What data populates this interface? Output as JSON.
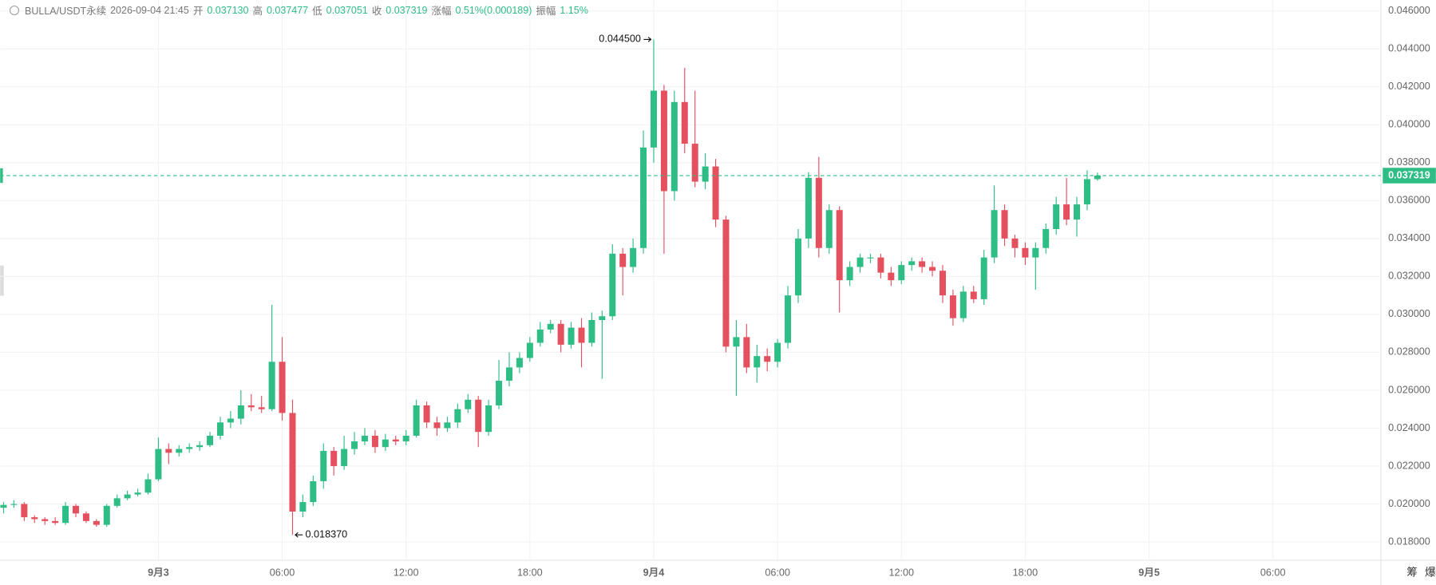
{
  "header": {
    "symbol": "BULLA/USDT永续",
    "time": "2026-09-04 21:45",
    "fields": [
      {
        "label": "开",
        "value": "0.037130"
      },
      {
        "label": "高",
        "value": "0.037477"
      },
      {
        "label": "低",
        "value": "0.037051"
      },
      {
        "label": "收",
        "value": "0.037319"
      },
      {
        "label": "涨幅",
        "value": "0.51%(0.000189)"
      },
      {
        "label": "振幅",
        "value": "1.15%"
      }
    ]
  },
  "chart_data": {
    "type": "candlestick",
    "up_color": "#2ebd85",
    "down_color": "#e5505f",
    "grid": true,
    "x": [
      "2026-09-02T16:30",
      "2026-09-02T17:00",
      "2026-09-02T17:30",
      "2026-09-02T18:00",
      "2026-09-02T18:30",
      "2026-09-02T19:00",
      "2026-09-02T19:30",
      "2026-09-02T20:00",
      "2026-09-02T20:30",
      "2026-09-02T21:00",
      "2026-09-02T21:30",
      "2026-09-02T22:00",
      "2026-09-02T22:30",
      "2026-09-02T23:00",
      "2026-09-02T23:30",
      "2026-09-03T00:00",
      "2026-09-03T00:30",
      "2026-09-03T01:00",
      "2026-09-03T01:30",
      "2026-09-03T02:00",
      "2026-09-03T02:30",
      "2026-09-03T03:00",
      "2026-09-03T03:30",
      "2026-09-03T04:00",
      "2026-09-03T04:30",
      "2026-09-03T05:00",
      "2026-09-03T05:30",
      "2026-09-03T06:00",
      "2026-09-03T06:30",
      "2026-09-03T07:00",
      "2026-09-03T07:30",
      "2026-09-03T08:00",
      "2026-09-03T08:30",
      "2026-09-03T09:00",
      "2026-09-03T09:30",
      "2026-09-03T10:00",
      "2026-09-03T10:30",
      "2026-09-03T11:00",
      "2026-09-03T11:30",
      "2026-09-03T12:00",
      "2026-09-03T12:30",
      "2026-09-03T13:00",
      "2026-09-03T13:30",
      "2026-09-03T14:00",
      "2026-09-03T14:30",
      "2026-09-03T15:00",
      "2026-09-03T15:30",
      "2026-09-03T16:00",
      "2026-09-03T16:30",
      "2026-09-03T17:00",
      "2026-09-03T17:30",
      "2026-09-03T18:00",
      "2026-09-03T18:30",
      "2026-09-03T19:00",
      "2026-09-03T19:30",
      "2026-09-03T20:00",
      "2026-09-03T20:30",
      "2026-09-03T21:00",
      "2026-09-03T21:30",
      "2026-09-03T22:00",
      "2026-09-03T22:30",
      "2026-09-03T23:00",
      "2026-09-03T23:30",
      "2026-09-04T00:00",
      "2026-09-04T00:30",
      "2026-09-04T01:00",
      "2026-09-04T01:30",
      "2026-09-04T02:00",
      "2026-09-04T02:30",
      "2026-09-04T03:00",
      "2026-09-04T03:30",
      "2026-09-04T04:00",
      "2026-09-04T04:30",
      "2026-09-04T05:00",
      "2026-09-04T05:30",
      "2026-09-04T06:00",
      "2026-09-04T06:30",
      "2026-09-04T07:00",
      "2026-09-04T07:30",
      "2026-09-04T08:00",
      "2026-09-04T08:30",
      "2026-09-04T09:00",
      "2026-09-04T09:30",
      "2026-09-04T10:00",
      "2026-09-04T10:30",
      "2026-09-04T11:00",
      "2026-09-04T11:30",
      "2026-09-04T12:00",
      "2026-09-04T12:30",
      "2026-09-04T13:00",
      "2026-09-04T13:30",
      "2026-09-04T14:00",
      "2026-09-04T14:30",
      "2026-09-04T15:00",
      "2026-09-04T15:30",
      "2026-09-04T16:00",
      "2026-09-04T16:30",
      "2026-09-04T17:00",
      "2026-09-04T17:30",
      "2026-09-04T18:00",
      "2026-09-04T18:30",
      "2026-09-04T19:00",
      "2026-09-04T19:30",
      "2026-09-04T20:00",
      "2026-09-04T20:30",
      "2026-09-04T21:00",
      "2026-09-04T21:30"
    ],
    "open": [
      0.0198,
      0.01995,
      0.02,
      0.0193,
      0.0192,
      0.0191,
      0.019,
      0.0199,
      0.0195,
      0.0191,
      0.0189,
      0.0199,
      0.0203,
      0.0205,
      0.0206,
      0.0213,
      0.0229,
      0.0227,
      0.0229,
      0.023,
      0.0231,
      0.0236,
      0.0243,
      0.0245,
      0.0252,
      0.0251,
      0.025,
      0.0275,
      0.0248,
      0.0196,
      0.0201,
      0.0212,
      0.0228,
      0.022,
      0.0229,
      0.0233,
      0.0236,
      0.023,
      0.0234,
      0.0233,
      0.0236,
      0.0252,
      0.0243,
      0.024,
      0.0243,
      0.025,
      0.0255,
      0.0238,
      0.0252,
      0.0265,
      0.0272,
      0.0277,
      0.0285,
      0.0292,
      0.0295,
      0.0284,
      0.0293,
      0.0285,
      0.0297,
      0.0299,
      0.0332,
      0.0325,
      0.0335,
      0.0388,
      0.0418,
      0.0365,
      0.0412,
      0.039,
      0.037,
      0.0378,
      0.035,
      0.0283,
      0.0288,
      0.0272,
      0.0278,
      0.0275,
      0.0285,
      0.031,
      0.034,
      0.0372,
      0.0335,
      0.0355,
      0.0318,
      0.0325,
      0.033,
      0.033,
      0.0322,
      0.0318,
      0.0326,
      0.0328,
      0.0325,
      0.0323,
      0.031,
      0.0298,
      0.0312,
      0.0308,
      0.033,
      0.0355,
      0.034,
      0.0335,
      0.033,
      0.0335,
      0.0345,
      0.0358,
      0.035,
      0.0358,
      0.03713
    ],
    "high": [
      0.0201,
      0.0202,
      0.0201,
      0.0194,
      0.0193,
      0.0193,
      0.0201,
      0.02,
      0.0196,
      0.0192,
      0.02,
      0.0205,
      0.0207,
      0.0208,
      0.0216,
      0.0235,
      0.0232,
      0.0231,
      0.0232,
      0.0233,
      0.0238,
      0.0246,
      0.0249,
      0.026,
      0.0258,
      0.0257,
      0.0305,
      0.0288,
      0.0255,
      0.0205,
      0.0215,
      0.0232,
      0.023,
      0.0236,
      0.0238,
      0.024,
      0.0239,
      0.0237,
      0.0236,
      0.0239,
      0.0255,
      0.0254,
      0.0246,
      0.0246,
      0.0253,
      0.0258,
      0.0257,
      0.0255,
      0.0276,
      0.028,
      0.028,
      0.0288,
      0.0296,
      0.0297,
      0.0297,
      0.0296,
      0.0298,
      0.0301,
      0.0302,
      0.0337,
      0.0335,
      0.034,
      0.0397,
      0.0445,
      0.0421,
      0.0418,
      0.043,
      0.0418,
      0.0385,
      0.0382,
      0.0352,
      0.0297,
      0.0295,
      0.0284,
      0.0282,
      0.0287,
      0.0315,
      0.0345,
      0.0375,
      0.0383,
      0.0358,
      0.0357,
      0.0328,
      0.0332,
      0.0332,
      0.0332,
      0.0325,
      0.0328,
      0.033,
      0.033,
      0.0328,
      0.0326,
      0.0313,
      0.0315,
      0.0315,
      0.0334,
      0.0368,
      0.0358,
      0.0342,
      0.0338,
      0.0338,
      0.0348,
      0.0362,
      0.0372,
      0.0362,
      0.0376,
      0.037477
    ],
    "low": [
      0.0195,
      0.0198,
      0.0191,
      0.019,
      0.0189,
      0.0189,
      0.0189,
      0.0193,
      0.019,
      0.0188,
      0.0188,
      0.0198,
      0.0202,
      0.0204,
      0.0205,
      0.0212,
      0.0221,
      0.0225,
      0.0227,
      0.0228,
      0.023,
      0.0234,
      0.024,
      0.0242,
      0.0249,
      0.0248,
      0.0249,
      0.0244,
      0.01837,
      0.0193,
      0.0199,
      0.0208,
      0.0215,
      0.0218,
      0.0226,
      0.0231,
      0.0227,
      0.0228,
      0.0231,
      0.0231,
      0.0235,
      0.024,
      0.0236,
      0.0238,
      0.024,
      0.0248,
      0.023,
      0.0236,
      0.025,
      0.0262,
      0.0269,
      0.0275,
      0.0283,
      0.029,
      0.028,
      0.0282,
      0.0272,
      0.0283,
      0.0266,
      0.0297,
      0.031,
      0.0322,
      0.0332,
      0.038,
      0.0332,
      0.036,
      0.0385,
      0.0367,
      0.0366,
      0.0346,
      0.028,
      0.0257,
      0.0269,
      0.0264,
      0.027,
      0.0272,
      0.0282,
      0.0306,
      0.0335,
      0.033,
      0.0332,
      0.0301,
      0.0315,
      0.0322,
      0.0327,
      0.0319,
      0.0315,
      0.0316,
      0.0323,
      0.0322,
      0.032,
      0.0306,
      0.0294,
      0.0296,
      0.0306,
      0.0305,
      0.0327,
      0.0336,
      0.033,
      0.0326,
      0.0313,
      0.0332,
      0.0342,
      0.0347,
      0.0341,
      0.0355,
      0.037051
    ],
    "close": [
      0.01995,
      0.02,
      0.0193,
      0.0192,
      0.0191,
      0.019,
      0.0199,
      0.0195,
      0.0191,
      0.0189,
      0.0199,
      0.0203,
      0.0205,
      0.0206,
      0.0213,
      0.0229,
      0.0227,
      0.0229,
      0.023,
      0.0231,
      0.0236,
      0.0243,
      0.0245,
      0.0252,
      0.0251,
      0.025,
      0.0275,
      0.0248,
      0.0196,
      0.0201,
      0.0212,
      0.0228,
      0.022,
      0.0229,
      0.0233,
      0.0236,
      0.023,
      0.0234,
      0.0233,
      0.0236,
      0.0252,
      0.0243,
      0.024,
      0.0243,
      0.025,
      0.0255,
      0.0238,
      0.0252,
      0.0265,
      0.0272,
      0.0277,
      0.0285,
      0.0292,
      0.0295,
      0.0284,
      0.0293,
      0.0285,
      0.0297,
      0.0299,
      0.0332,
      0.0325,
      0.0335,
      0.0388,
      0.0418,
      0.0365,
      0.0412,
      0.039,
      0.037,
      0.0378,
      0.035,
      0.0283,
      0.0288,
      0.0272,
      0.0278,
      0.0275,
      0.0285,
      0.031,
      0.034,
      0.0372,
      0.0335,
      0.0355,
      0.0318,
      0.0325,
      0.033,
      0.033,
      0.0322,
      0.0318,
      0.0326,
      0.0328,
      0.0325,
      0.0323,
      0.031,
      0.0298,
      0.0312,
      0.0308,
      0.033,
      0.0355,
      0.034,
      0.0335,
      0.033,
      0.0335,
      0.0345,
      0.0358,
      0.035,
      0.0358,
      0.03713,
      0.037319
    ],
    "xlim": [
      "2026-09-02T16:20",
      "2026-09-05T11:14"
    ],
    "xticks": [
      {
        "value": "2026-09-03T00:00",
        "label": "9月3"
      },
      {
        "value": "2026-09-03T06:00",
        "label": "06:00"
      },
      {
        "value": "2026-09-03T12:00",
        "label": "12:00"
      },
      {
        "value": "2026-09-03T18:00",
        "label": "18:00"
      },
      {
        "value": "2026-09-04T00:00",
        "label": "9月4"
      },
      {
        "value": "2026-09-04T06:00",
        "label": "06:00"
      },
      {
        "value": "2026-09-04T12:00",
        "label": "12:00"
      },
      {
        "value": "2026-09-04T18:00",
        "label": "18:00"
      },
      {
        "value": "2026-09-05T00:00",
        "label": "9月5"
      },
      {
        "value": "2026-09-05T06:00",
        "label": "06:00"
      }
    ],
    "ylim": [
      0.01703,
      0.04658
    ],
    "yticks": [
      {
        "value": 0.018,
        "label": "0.018000"
      },
      {
        "value": 0.02,
        "label": "0.020000"
      },
      {
        "value": 0.022,
        "label": "0.022000"
      },
      {
        "value": 0.024,
        "label": "0.024000"
      },
      {
        "value": 0.026,
        "label": "0.026000"
      },
      {
        "value": 0.028,
        "label": "0.028000"
      },
      {
        "value": 0.03,
        "label": "0.030000"
      },
      {
        "value": 0.032,
        "label": "0.032000"
      },
      {
        "value": 0.034,
        "label": "0.034000"
      },
      {
        "value": 0.036,
        "label": "0.036000"
      },
      {
        "value": 0.038,
        "label": "0.038000"
      },
      {
        "value": 0.04,
        "label": "0.040000"
      },
      {
        "value": 0.042,
        "label": "0.042000"
      },
      {
        "value": 0.044,
        "label": "0.044000"
      },
      {
        "value": 0.046,
        "label": "0.046000"
      }
    ],
    "last_price": {
      "value": 0.037319,
      "label": "0.037319"
    },
    "annotations": {
      "high": {
        "value": 0.0445,
        "label": "0.044500"
      },
      "low": {
        "value": 0.01837,
        "label": "0.018370"
      }
    }
  },
  "tools": [
    "筹",
    "爆"
  ]
}
